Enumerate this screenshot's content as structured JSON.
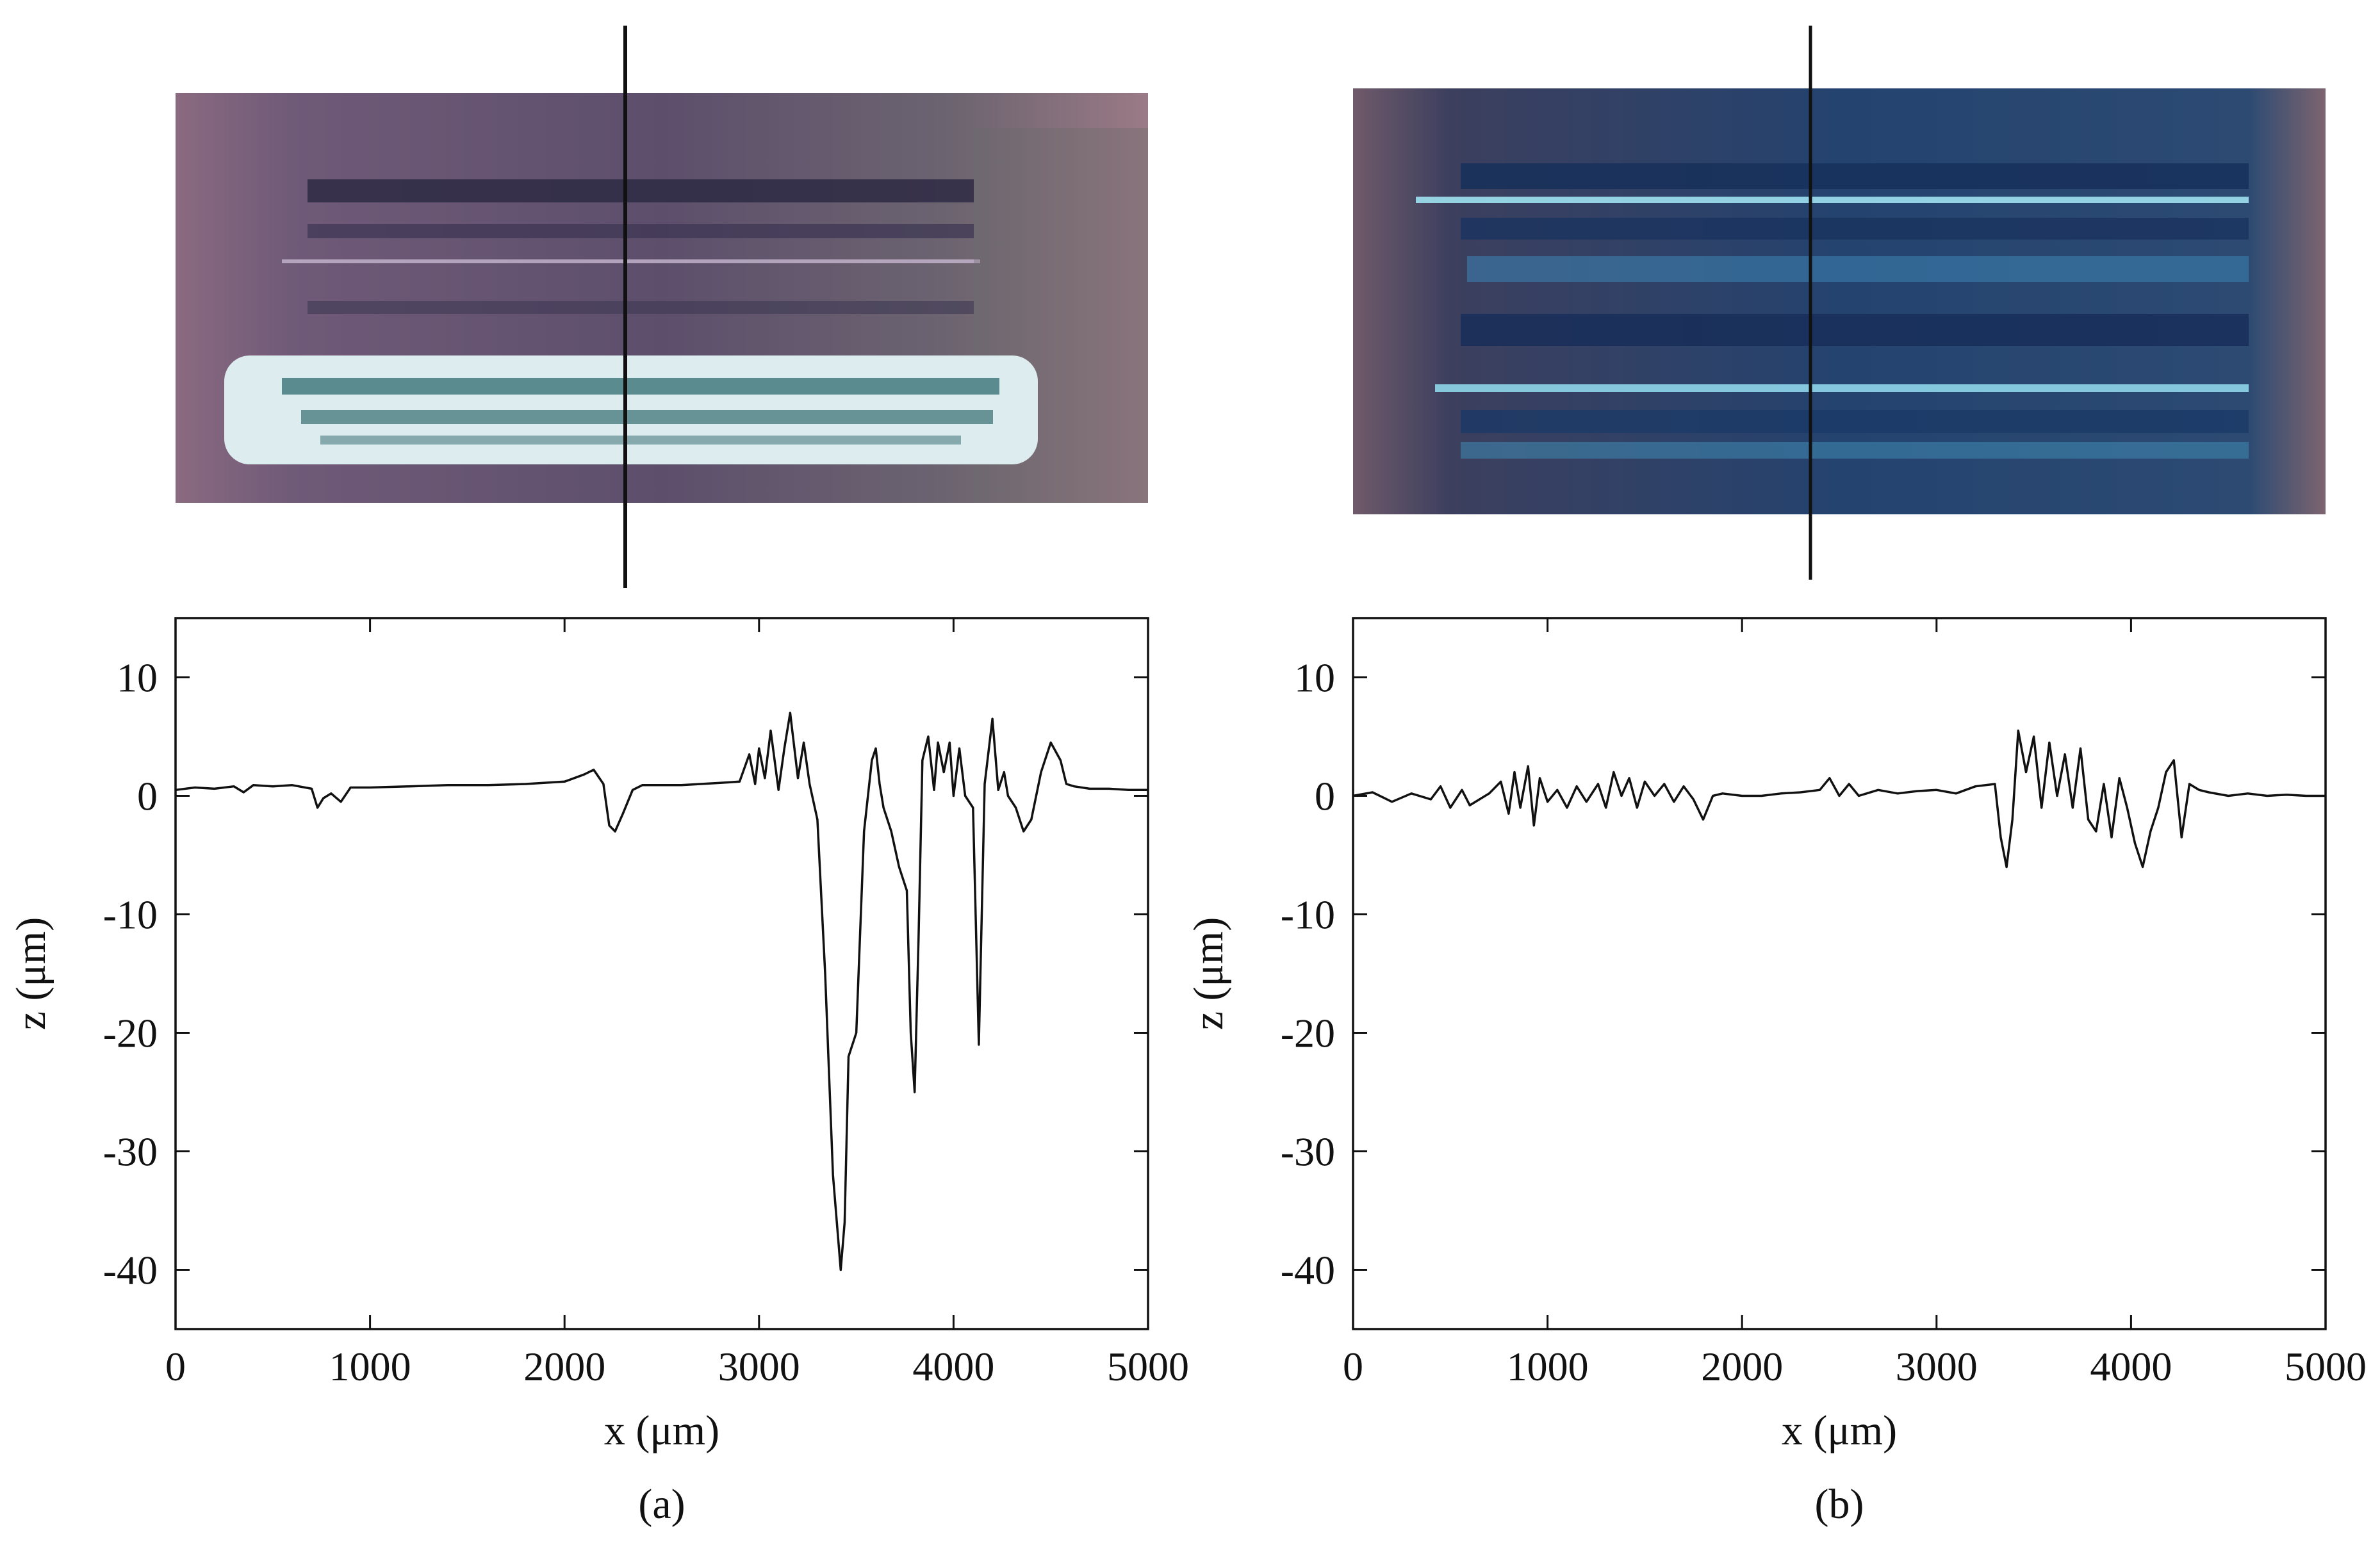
{
  "panels": [
    {
      "caption": "(a)",
      "photo_description": ""
    },
    {
      "caption": "(b)",
      "photo_description": ""
    }
  ],
  "colors": {
    "line": "#111111",
    "axis": "#111111",
    "photo_a": [
      "#8a6a80",
      "#6f5a78",
      "#4a3f5c",
      "#d9ecef",
      "#2f6b6e",
      "#9a7a86"
    ],
    "photo_b": [
      "#6f5a6a",
      "#2a4f7a",
      "#1d3563",
      "#5fb7d6",
      "#223a6b",
      "#7d6470"
    ]
  },
  "chart_data": [
    {
      "type": "line",
      "panel": "(a)",
      "xlabel": "x (μm)",
      "ylabel": "z (μm)",
      "xlim": [
        0,
        5000
      ],
      "ylim": [
        -45,
        15
      ],
      "xticks": [
        0,
        1000,
        2000,
        3000,
        4000,
        5000
      ],
      "yticks": [
        10,
        0,
        -10,
        -20,
        -30,
        -40
      ],
      "xtick_labels": [
        "0",
        "1000",
        "2000",
        "3000",
        "4000",
        "5000"
      ],
      "ytick_labels": [
        "10",
        "0",
        "-10",
        "-20",
        "-30",
        "-40"
      ],
      "grid": false,
      "section_line_x": 2300,
      "series": [
        {
          "x": [
            0,
            100,
            200,
            300,
            350,
            400,
            500,
            600,
            700,
            730,
            760,
            800,
            850,
            900,
            1000,
            1200,
            1400,
            1600,
            1800,
            2000,
            2100,
            2150,
            2200,
            2230,
            2260,
            2300,
            2350,
            2400,
            2500,
            2600,
            2700,
            2800,
            2900,
            2950,
            2980,
            3000,
            3030,
            3060,
            3100,
            3130,
            3160,
            3200,
            3230,
            3260,
            3300,
            3340,
            3380,
            3420,
            3440,
            3460,
            3500,
            3540,
            3580,
            3600,
            3620,
            3640,
            3680,
            3720,
            3760,
            3780,
            3800,
            3820,
            3840,
            3870,
            3900,
            3920,
            3950,
            3980,
            4000,
            4030,
            4060,
            4100,
            4130,
            4160,
            4200,
            4230,
            4260,
            4280,
            4320,
            4360,
            4400,
            4450,
            4500,
            4550,
            4580,
            4620,
            4700,
            4800,
            4900,
            5000
          ],
          "y": [
            0.5,
            0.7,
            0.6,
            0.8,
            0.3,
            0.9,
            0.8,
            0.9,
            0.6,
            -1.0,
            -0.2,
            0.2,
            -0.5,
            0.7,
            0.7,
            0.8,
            0.9,
            0.9,
            1.0,
            1.2,
            1.8,
            2.2,
            1.0,
            -2.5,
            -3.0,
            -1.5,
            0.5,
            0.9,
            0.9,
            0.9,
            1.0,
            1.1,
            1.2,
            3.5,
            1.0,
            4.0,
            1.5,
            5.5,
            0.5,
            4.0,
            7.0,
            1.5,
            4.5,
            1.0,
            -2.0,
            -15.0,
            -32.0,
            -40.0,
            -36.0,
            -22.0,
            -20.0,
            -3.0,
            3.0,
            4.0,
            1.0,
            -1.0,
            -3.0,
            -6.0,
            -8.0,
            -20.0,
            -25.0,
            -12.0,
            3.0,
            5.0,
            0.5,
            4.5,
            2.0,
            4.5,
            0.0,
            4.0,
            0.0,
            -1.0,
            -21.0,
            1.0,
            6.5,
            0.5,
            2.0,
            0.0,
            -1.0,
            -3.0,
            -2.0,
            2.0,
            4.5,
            3.0,
            1.0,
            0.8,
            0.6,
            0.6,
            0.5,
            0.5
          ]
        }
      ]
    },
    {
      "type": "line",
      "panel": "(b)",
      "xlabel": "x (μm)",
      "ylabel": "z (μm)",
      "xlim": [
        0,
        5000
      ],
      "ylim": [
        -45,
        15
      ],
      "xticks": [
        0,
        1000,
        2000,
        3000,
        4000,
        5000
      ],
      "yticks": [
        10,
        0,
        -10,
        -20,
        -30,
        -40
      ],
      "xtick_labels": [
        "0",
        "1000",
        "2000",
        "3000",
        "4000",
        "5000"
      ],
      "ytick_labels": [
        "10",
        "0",
        "-10",
        "-20",
        "-30",
        "-40"
      ],
      "grid": false,
      "section_line_x": 2370,
      "series": [
        {
          "x": [
            0,
            100,
            200,
            300,
            400,
            450,
            500,
            560,
            600,
            700,
            760,
            800,
            830,
            860,
            900,
            930,
            960,
            1000,
            1050,
            1100,
            1150,
            1200,
            1260,
            1300,
            1340,
            1380,
            1420,
            1460,
            1500,
            1550,
            1600,
            1650,
            1700,
            1750,
            1800,
            1850,
            1900,
            2000,
            2100,
            2200,
            2300,
            2400,
            2450,
            2500,
            2550,
            2600,
            2700,
            2800,
            2900,
            3000,
            3100,
            3200,
            3300,
            3330,
            3360,
            3390,
            3420,
            3460,
            3500,
            3540,
            3580,
            3620,
            3660,
            3700,
            3740,
            3780,
            3820,
            3860,
            3900,
            3940,
            3980,
            4020,
            4060,
            4100,
            4140,
            4180,
            4220,
            4260,
            4300,
            4350,
            4400,
            4500,
            4600,
            4700,
            4800,
            4900,
            5000
          ],
          "y": [
            0.0,
            0.3,
            -0.5,
            0.2,
            -0.3,
            0.8,
            -1.0,
            0.5,
            -0.8,
            0.2,
            1.2,
            -1.5,
            2.0,
            -1.0,
            2.5,
            -2.5,
            1.5,
            -0.5,
            0.5,
            -1.0,
            0.8,
            -0.5,
            1.0,
            -1.0,
            2.0,
            0.0,
            1.5,
            -1.0,
            1.2,
            0.0,
            1.0,
            -0.5,
            0.8,
            -0.3,
            -2.0,
            0.0,
            0.2,
            0.0,
            0.0,
            0.2,
            0.3,
            0.5,
            1.5,
            0.0,
            1.0,
            0.0,
            0.5,
            0.2,
            0.4,
            0.5,
            0.2,
            0.8,
            1.0,
            -3.5,
            -6.0,
            -2.0,
            5.5,
            2.0,
            5.0,
            -1.0,
            4.5,
            0.0,
            3.5,
            -1.0,
            4.0,
            -2.0,
            -3.0,
            1.0,
            -3.5,
            1.5,
            -1.0,
            -4.0,
            -6.0,
            -3.0,
            -1.0,
            2.0,
            3.0,
            -3.5,
            1.0,
            0.5,
            0.3,
            0.0,
            0.2,
            0.0,
            0.1,
            0.0,
            0.0
          ]
        }
      ]
    }
  ]
}
